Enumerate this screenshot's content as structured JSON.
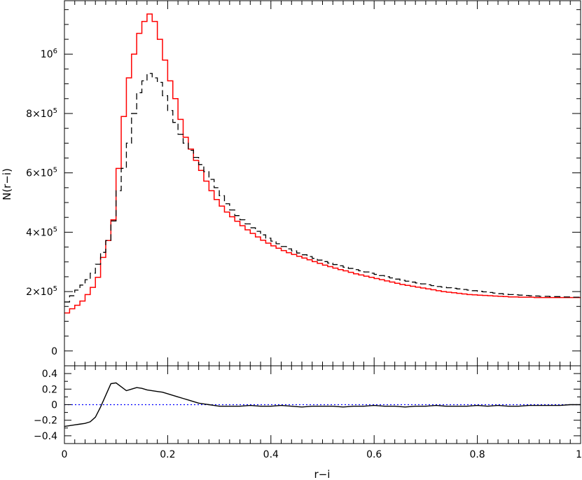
{
  "chart_data": [
    {
      "type": "line",
      "panel": "top",
      "ylabel": "N(r−i)",
      "xlim": [
        0,
        1
      ],
      "ylim": [
        -50000,
        1180000
      ],
      "grid": false,
      "bin_width": 0.01,
      "y_ticks": [
        {
          "value": 0,
          "base": "0",
          "exp": ""
        },
        {
          "value": 200000,
          "base": "2×10",
          "exp": "5"
        },
        {
          "value": 400000,
          "base": "4×10",
          "exp": "5"
        },
        {
          "value": 600000,
          "base": "6×10",
          "exp": "5"
        },
        {
          "value": 800000,
          "base": "8×10",
          "exp": "5"
        },
        {
          "value": 1000000,
          "base": "10",
          "exp": "6"
        }
      ],
      "series": [
        {
          "color": "#ff0000",
          "style": "solid",
          "values": [
            128000,
            142000,
            154000,
            168000,
            190000,
            214000,
            248000,
            315000,
            372000,
            442000,
            615000,
            790000,
            920000,
            1000000,
            1070000,
            1110000,
            1135000,
            1110000,
            1050000,
            980000,
            910000,
            850000,
            780000,
            720000,
            680000,
            642000,
            608000,
            572000,
            540000,
            510000,
            488000,
            468000,
            452000,
            437000,
            422000,
            408000,
            396000,
            384000,
            373000,
            363000,
            354000,
            346000,
            338000,
            331000,
            325000,
            319000,
            313000,
            307000,
            301000,
            295000,
            289000,
            284000,
            279000,
            274000,
            270000,
            265000,
            260000,
            256000,
            252000,
            248000,
            244000,
            240000,
            236000,
            232000,
            228000,
            224000,
            221000,
            218000,
            215000,
            212000,
            209000,
            206000,
            203000,
            200000,
            198000,
            196000,
            194000,
            192000,
            190000,
            189000,
            188000,
            187000,
            186000,
            185000,
            184000,
            183000,
            182000,
            182000,
            181000,
            181000,
            181000,
            180000,
            180000,
            180000,
            180000,
            180000,
            180000,
            180000,
            180000,
            180000
          ]
        },
        {
          "color": "#000000",
          "style": "dashed",
          "values": [
            165000,
            186000,
            205000,
            222000,
            240000,
            262000,
            292000,
            332000,
            372000,
            438000,
            540000,
            615000,
            700000,
            800000,
            870000,
            910000,
            935000,
            920000,
            905000,
            860000,
            810000,
            770000,
            730000,
            700000,
            676000,
            652000,
            628000,
            604000,
            578000,
            550000,
            523000,
            496000,
            475000,
            456000,
            442000,
            428000,
            415000,
            403000,
            391000,
            380000,
            370000,
            361000,
            352000,
            344000,
            337000,
            330000,
            324000,
            318000,
            312000,
            306000,
            301000,
            296000,
            291000,
            287000,
            282000,
            278000,
            274000,
            270000,
            266000,
            262000,
            258000,
            254000,
            250000,
            246000,
            242000,
            238000,
            235000,
            232000,
            229000,
            226000,
            223000,
            220000,
            217000,
            215000,
            213000,
            211000,
            209000,
            207000,
            205000,
            203000,
            201000,
            199000,
            197000,
            195000,
            193000,
            191000,
            190000,
            189000,
            188000,
            187000,
            186000,
            185000,
            184000,
            184000,
            183000,
            183000,
            182000,
            182000,
            181000,
            181000
          ]
        }
      ]
    },
    {
      "type": "line",
      "panel": "bottom",
      "xlabel": "r−i",
      "xlim": [
        0,
        1
      ],
      "ylim": [
        -0.5,
        0.5
      ],
      "x_ticks": [
        0,
        0.2,
        0.4,
        0.6,
        0.8,
        1
      ],
      "x_tick_labels": [
        "0",
        "0.2",
        "0.4",
        "0.6",
        "0.8",
        "1"
      ],
      "y_ticks": [
        -0.4,
        -0.2,
        0,
        0.2,
        0.4
      ],
      "y_tick_labels": [
        "−0.4",
        "−0.2",
        "0",
        "0.2",
        "0.4"
      ],
      "reference_line": {
        "y": 0,
        "color": "#0000ff",
        "style": "dotted"
      },
      "series": [
        {
          "color": "#000000",
          "style": "solid",
          "x": [
            0,
            0.01,
            0.02,
            0.03,
            0.04,
            0.05,
            0.06,
            0.07,
            0.08,
            0.09,
            0.1,
            0.11,
            0.12,
            0.13,
            0.14,
            0.15,
            0.16,
            0.17,
            0.18,
            0.19,
            0.2,
            0.21,
            0.22,
            0.23,
            0.24,
            0.25,
            0.26,
            0.27,
            0.28,
            0.29,
            0.3,
            0.32,
            0.34,
            0.36,
            0.38,
            0.4,
            0.42,
            0.44,
            0.46,
            0.48,
            0.5,
            0.52,
            0.54,
            0.56,
            0.58,
            0.6,
            0.62,
            0.64,
            0.66,
            0.68,
            0.7,
            0.72,
            0.74,
            0.76,
            0.78,
            0.8,
            0.82,
            0.84,
            0.86,
            0.88,
            0.9,
            0.92,
            0.94,
            0.96,
            0.98,
            1.0
          ],
          "y": [
            -0.28,
            -0.27,
            -0.26,
            -0.25,
            -0.24,
            -0.22,
            -0.16,
            -0.03,
            0.12,
            0.27,
            0.28,
            0.23,
            0.18,
            0.2,
            0.22,
            0.21,
            0.19,
            0.18,
            0.17,
            0.16,
            0.14,
            0.12,
            0.1,
            0.08,
            0.06,
            0.04,
            0.02,
            0.01,
            0.0,
            -0.01,
            -0.02,
            -0.02,
            -0.02,
            -0.01,
            -0.02,
            -0.02,
            -0.01,
            -0.02,
            -0.03,
            -0.02,
            -0.02,
            -0.02,
            -0.03,
            -0.02,
            -0.02,
            -0.01,
            -0.02,
            -0.02,
            -0.03,
            -0.02,
            -0.02,
            -0.01,
            -0.02,
            -0.02,
            -0.02,
            -0.01,
            -0.02,
            -0.01,
            -0.02,
            -0.02,
            -0.01,
            -0.01,
            -0.01,
            -0.01,
            0.0,
            0.0
          ]
        }
      ]
    }
  ]
}
